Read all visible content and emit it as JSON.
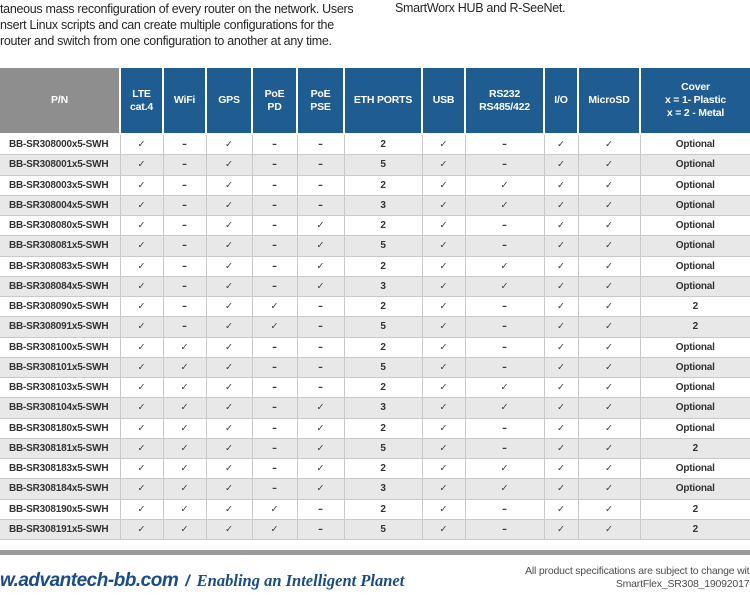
{
  "intro": {
    "left_lines": [
      "taneous mass reconfiguration of every router on the network. Users",
      "nsert Linux scripts and can create multiple configurations for the",
      "router and switch from one configuration to another at any time."
    ],
    "right_text": "SmartWorx HUB and R-SeeNet."
  },
  "table": {
    "symbols": {
      "check": "✓",
      "dash": "–"
    },
    "columns": [
      {
        "id": "pn",
        "lines": [
          "P/N"
        ]
      },
      {
        "id": "lte-cat4",
        "lines": [
          "LTE",
          "cat.4"
        ]
      },
      {
        "id": "wifi",
        "lines": [
          "WiFi"
        ]
      },
      {
        "id": "gps",
        "lines": [
          "GPS"
        ]
      },
      {
        "id": "poe-pd",
        "lines": [
          "PoE",
          "PD"
        ]
      },
      {
        "id": "poe-pse",
        "lines": [
          "PoE",
          "PSE"
        ]
      },
      {
        "id": "eth-ports",
        "lines": [
          "ETH PORTS"
        ]
      },
      {
        "id": "usb",
        "lines": [
          "USB"
        ]
      },
      {
        "id": "rs232-rs485-422",
        "lines": [
          "RS232",
          "RS485/422"
        ]
      },
      {
        "id": "io",
        "lines": [
          "I/O"
        ]
      },
      {
        "id": "microsd",
        "lines": [
          "MicroSD"
        ]
      },
      {
        "id": "cover",
        "lines": [
          "Cover",
          "x = 1- Plastic",
          "x = 2 - Metal"
        ]
      }
    ],
    "rows": [
      {
        "pn": "BB-SR308000x5-SWH",
        "values": [
          "check",
          "dash",
          "check",
          "dash",
          "dash",
          "2",
          "check",
          "dash",
          "check",
          "check",
          "Optional"
        ]
      },
      {
        "pn": "BB-SR308001x5-SWH",
        "values": [
          "check",
          "dash",
          "check",
          "dash",
          "dash",
          "5",
          "check",
          "dash",
          "check",
          "check",
          "Optional"
        ]
      },
      {
        "pn": "BB-SR308003x5-SWH",
        "values": [
          "check",
          "dash",
          "check",
          "dash",
          "dash",
          "2",
          "check",
          "check",
          "check",
          "check",
          "Optional"
        ]
      },
      {
        "pn": "BB-SR308004x5-SWH",
        "values": [
          "check",
          "dash",
          "check",
          "dash",
          "dash",
          "3",
          "check",
          "check",
          "check",
          "check",
          "Optional"
        ]
      },
      {
        "pn": "BB-SR308080x5-SWH",
        "values": [
          "check",
          "dash",
          "check",
          "dash",
          "check",
          "2",
          "check",
          "dash",
          "check",
          "check",
          "Optional"
        ]
      },
      {
        "pn": "BB-SR308081x5-SWH",
        "values": [
          "check",
          "dash",
          "check",
          "dash",
          "check",
          "5",
          "check",
          "dash",
          "check",
          "check",
          "Optional"
        ]
      },
      {
        "pn": "BB-SR308083x5-SWH",
        "values": [
          "check",
          "dash",
          "check",
          "dash",
          "check",
          "2",
          "check",
          "check",
          "check",
          "check",
          "Optional"
        ]
      },
      {
        "pn": "BB-SR308084x5-SWH",
        "values": [
          "check",
          "dash",
          "check",
          "dash",
          "check",
          "3",
          "check",
          "check",
          "check",
          "check",
          "Optional"
        ]
      },
      {
        "pn": "BB-SR308090x5-SWH",
        "values": [
          "check",
          "dash",
          "check",
          "check",
          "dash",
          "2",
          "check",
          "dash",
          "check",
          "check",
          "2"
        ]
      },
      {
        "pn": "BB-SR308091x5-SWH",
        "values": [
          "check",
          "dash",
          "check",
          "check",
          "dash",
          "5",
          "check",
          "dash",
          "check",
          "check",
          "2"
        ]
      },
      {
        "pn": "BB-SR308100x5-SWH",
        "values": [
          "check",
          "check",
          "check",
          "dash",
          "dash",
          "2",
          "check",
          "dash",
          "check",
          "check",
          "Optional"
        ]
      },
      {
        "pn": "BB-SR308101x5-SWH",
        "values": [
          "check",
          "check",
          "check",
          "dash",
          "dash",
          "5",
          "check",
          "dash",
          "check",
          "check",
          "Optional"
        ]
      },
      {
        "pn": "BB-SR308103x5-SWH",
        "values": [
          "check",
          "check",
          "check",
          "dash",
          "dash",
          "2",
          "check",
          "check",
          "check",
          "check",
          "Optional"
        ]
      },
      {
        "pn": "BB-SR308104x5-SWH",
        "values": [
          "check",
          "check",
          "check",
          "dash",
          "check",
          "3",
          "check",
          "check",
          "check",
          "check",
          "Optional"
        ]
      },
      {
        "pn": "BB-SR308180x5-SWH",
        "values": [
          "check",
          "check",
          "check",
          "dash",
          "check",
          "2",
          "check",
          "dash",
          "check",
          "check",
          "Optional"
        ]
      },
      {
        "pn": "BB-SR308181x5-SWH",
        "values": [
          "check",
          "check",
          "check",
          "dash",
          "check",
          "5",
          "check",
          "dash",
          "check",
          "check",
          "2"
        ]
      },
      {
        "pn": "BB-SR308183x5-SWH",
        "values": [
          "check",
          "check",
          "check",
          "dash",
          "check",
          "2",
          "check",
          "check",
          "check",
          "check",
          "Optional"
        ]
      },
      {
        "pn": "BB-SR308184x5-SWH",
        "values": [
          "check",
          "check",
          "check",
          "dash",
          "check",
          "3",
          "check",
          "check",
          "check",
          "check",
          "Optional"
        ]
      },
      {
        "pn": "BB-SR308190x5-SWH",
        "values": [
          "check",
          "check",
          "check",
          "check",
          "dash",
          "2",
          "check",
          "dash",
          "check",
          "check",
          "2"
        ]
      },
      {
        "pn": "BB-SR308191x5-SWH",
        "values": [
          "check",
          "check",
          "check",
          "check",
          "dash",
          "5",
          "check",
          "dash",
          "check",
          "check",
          "2"
        ]
      }
    ]
  },
  "footer": {
    "website": "w.advantech-bb.com",
    "separator": "/",
    "tagline": "Enabling an Intelligent Planet",
    "disclaimer_line1": "All product specifications are subject to change with",
    "doc_code": "SmartFlex_SR308_19092017d"
  },
  "colors": {
    "header_blue": "#1e5c92",
    "header_gray": "#8e8e8e",
    "row_alt": "#e8e8e8",
    "grid_line": "#c9c9c9",
    "footer_blue": "#1a4c85",
    "divider_gray": "#9b9b9b"
  }
}
